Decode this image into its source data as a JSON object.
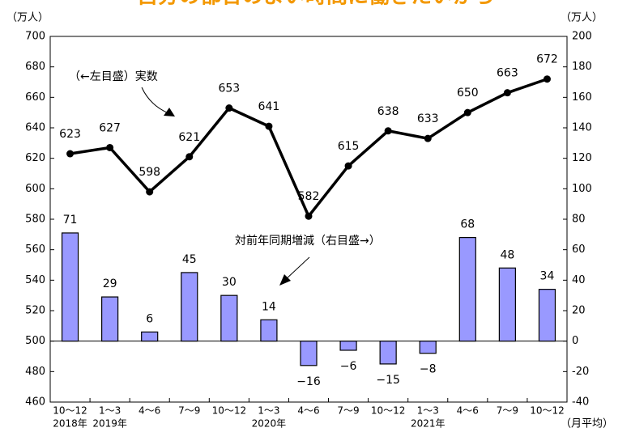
{
  "chart_data": {
    "type": "bar_line",
    "title": "自分の都合のよい時間に働きたいから",
    "y_unit": "（万人）",
    "y2_unit": "（万人）",
    "x_unit": "（月平均）",
    "annotations": [
      "（←左目盛）実数",
      "対前年同期増減（右目盛→）"
    ],
    "categories": [
      "10～12",
      "1～3",
      "4～6",
      "7～9",
      "10～12",
      "1～3",
      "4～6",
      "7～9",
      "10～12",
      "1～3",
      "4～6",
      "7～9",
      "10～12"
    ],
    "year_labels": [
      "2018年",
      "2019年",
      null,
      null,
      null,
      "2020年",
      null,
      null,
      null,
      "2021年",
      null,
      null,
      null
    ],
    "series": [
      {
        "name": "実数",
        "type": "line",
        "color": "#000000",
        "values": [
          623,
          627,
          598,
          621,
          653,
          641,
          582,
          615,
          638,
          633,
          650,
          663,
          672
        ]
      },
      {
        "name": "対前年同期増減",
        "type": "bar",
        "axis": "y2",
        "color": "#9999ff",
        "values": [
          71,
          29,
          6,
          45,
          30,
          14,
          -16,
          -6,
          -15,
          -8,
          68,
          48,
          34
        ],
        "value_labels": [
          "71",
          "29",
          "6",
          "45",
          "30",
          "14",
          "−16",
          "−6",
          "−15",
          "−8",
          "68",
          "48",
          "34"
        ]
      }
    ],
    "ylim": [
      460,
      700
    ],
    "yticks": [
      460,
      480,
      500,
      520,
      540,
      560,
      580,
      600,
      620,
      640,
      660,
      680,
      700
    ],
    "y2lim": [
      -40,
      200
    ],
    "y2ticks": [
      -40,
      -20,
      0,
      20,
      40,
      60,
      80,
      100,
      120,
      140,
      160,
      180,
      200
    ]
  }
}
